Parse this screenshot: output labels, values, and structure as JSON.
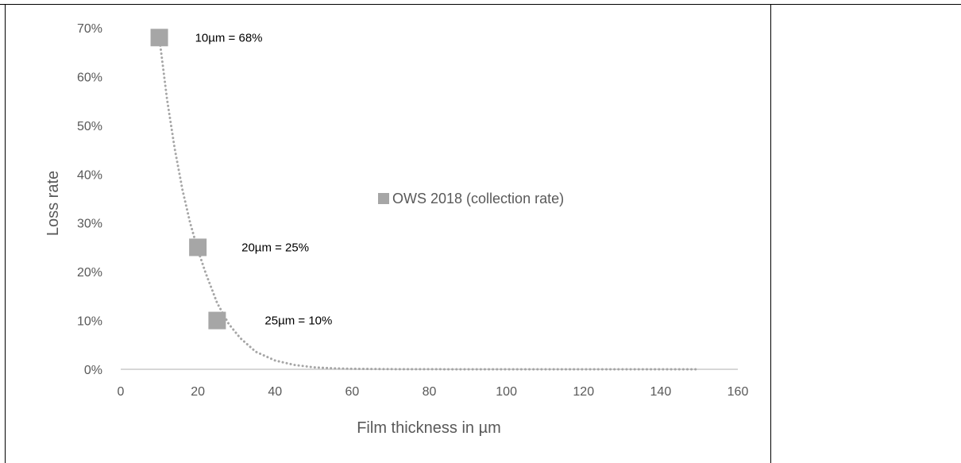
{
  "chart_data": {
    "type": "scatter",
    "xlabel": "Film thickness in µm",
    "ylabel": "Loss rate",
    "xlim": [
      0,
      160
    ],
    "ylim": [
      0,
      0.7
    ],
    "x_ticks": [
      0,
      20,
      40,
      60,
      80,
      100,
      120,
      140,
      160
    ],
    "x_tick_labels": [
      "0",
      "20",
      "40",
      "60",
      "80",
      "100",
      "120",
      "140",
      "160"
    ],
    "y_ticks": [
      0,
      0.1,
      0.2,
      0.3,
      0.4,
      0.5,
      0.6,
      0.7
    ],
    "y_tick_labels": [
      "0%",
      "10%",
      "20%",
      "30%",
      "40%",
      "50%",
      "60%",
      "70%"
    ],
    "grid": false,
    "legend_position": "center",
    "series": [
      {
        "name": "OWS 2018 (collection rate)",
        "marker": "square",
        "color": "#a6a6a6",
        "x": [
          10,
          20,
          25
        ],
        "y": [
          0.68,
          0.25,
          0.1
        ],
        "labels": [
          "10µm  = 68%",
          "20µm  = 25%",
          "25µm  = 10%"
        ]
      }
    ],
    "trendline": {
      "style": "dotted",
      "color": "#a6a6a6",
      "x": [
        10,
        12,
        14,
        16,
        18,
        20,
        22,
        25,
        28,
        31,
        35,
        40,
        45,
        50,
        55,
        60,
        70,
        80,
        90,
        100,
        110,
        120,
        130,
        140,
        150
      ],
      "y": [
        0.68,
        0.554,
        0.452,
        0.368,
        0.3,
        0.245,
        0.198,
        0.136,
        0.093,
        0.064,
        0.036,
        0.018,
        0.009,
        0.004,
        0.002,
        0.001,
        0.0003,
        0.0001,
        0,
        0,
        0,
        0,
        0,
        0,
        0
      ]
    },
    "colors": {
      "axis": "#bfbfbf",
      "text": "#595959",
      "marker": "#a6a6a6",
      "data_label": "#000000"
    }
  }
}
